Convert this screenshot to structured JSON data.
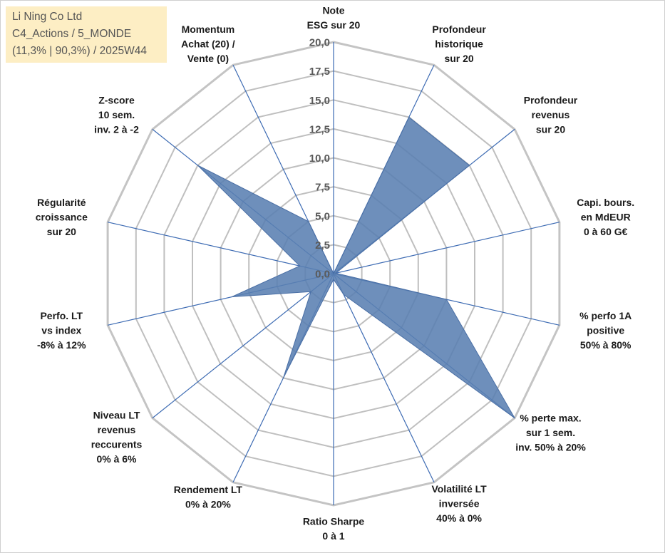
{
  "header": {
    "company": "Li Ning Co Ltd",
    "portfolio": "C4_Actions / 5_MONDE",
    "stats": "(11,3% | 90,3%) / 2025W44"
  },
  "chart_data": {
    "type": "radar",
    "rmin": 0,
    "rmax": 20,
    "tick_step": 2.5,
    "tick_labels": [
      "0,0",
      "2,5",
      "5,0",
      "7,5",
      "10,0",
      "12,5",
      "15,0",
      "17,5",
      "20,0"
    ],
    "axes": [
      {
        "lines": [
          "Note",
          "ESG sur 20"
        ],
        "value": 0
      },
      {
        "lines": [
          "Profondeur",
          "historique",
          "sur 20"
        ],
        "value": 15
      },
      {
        "lines": [
          "Profondeur",
          "revenus",
          "sur 20"
        ],
        "value": 15
      },
      {
        "lines": [
          "Capi. bours.",
          "en MdEUR",
          "0 à 60 G€"
        ],
        "value": 0.2
      },
      {
        "lines": [
          "% perfo 1A",
          "positive",
          "50% à 80%"
        ],
        "value": 10
      },
      {
        "lines": [
          "% perte max.",
          "sur 1 sem.",
          "inv. 50% à 20%"
        ],
        "value": 20
      },
      {
        "lines": [
          "Volatilité LT",
          "inversée",
          "40% à 0%"
        ],
        "value": 2
      },
      {
        "lines": [
          "Ratio Sharpe",
          "0 à 1"
        ],
        "value": 0.5
      },
      {
        "lines": [
          "Rendement LT",
          "0% à 20%"
        ],
        "value": 10
      },
      {
        "lines": [
          "Niveau LT",
          "revenus",
          "reccurents",
          "0% à 6%"
        ],
        "value": 2.5
      },
      {
        "lines": [
          "Perfo. LT",
          "vs index",
          "-8% à 12%"
        ],
        "value": 9
      },
      {
        "lines": [
          "Régularité",
          "croissance",
          "sur 20"
        ],
        "value": 3
      },
      {
        "lines": [
          "Z-score",
          "10 sem.",
          "inv. 2 à -2"
        ],
        "value": 15
      },
      {
        "lines": [
          "Momentum",
          "Achat (20) /",
          "Vente (0)"
        ],
        "value": 5
      }
    ],
    "colors": {
      "fill": "#5a7fb2",
      "stroke": "#4a6fa5",
      "spoke": "#3d6bb3",
      "grid": "#bfbfbf",
      "outer": "#c4c4c4"
    }
  }
}
